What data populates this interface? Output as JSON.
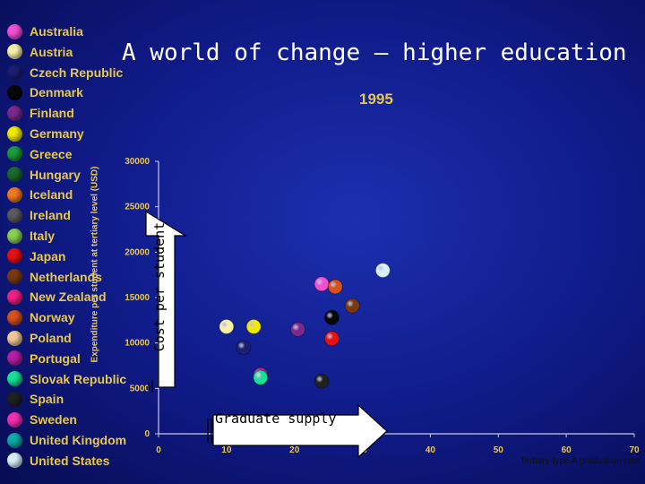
{
  "title": "A world of change – higher education",
  "year": "1995",
  "arrow_up_label": "Cost per student",
  "arrow_right_label": "Graduate supply",
  "legend": [
    {
      "name": "Australia",
      "color": "#f050d0"
    },
    {
      "name": "Austria",
      "color": "#f7f1a8"
    },
    {
      "name": "Czech Republic",
      "color": "#1a1f70"
    },
    {
      "name": "Denmark",
      "color": "#080808"
    },
    {
      "name": "Finland",
      "color": "#7a2a8c"
    },
    {
      "name": "Germany",
      "color": "#f0e800"
    },
    {
      "name": "Greece",
      "color": "#1a9a3a"
    },
    {
      "name": "Hungary",
      "color": "#1c6a2a"
    },
    {
      "name": "Iceland",
      "color": "#f07a20"
    },
    {
      "name": "Ireland",
      "color": "#5a5a5a"
    },
    {
      "name": "Italy",
      "color": "#8ad050"
    },
    {
      "name": "Japan",
      "color": "#e81010"
    },
    {
      "name": "Netherlands",
      "color": "#7a3a10"
    },
    {
      "name": "New Zealand",
      "color": "#f02080"
    },
    {
      "name": "Norway",
      "color": "#d8501a"
    },
    {
      "name": "Poland",
      "color": "#f5c898"
    },
    {
      "name": "Portugal",
      "color": "#b020a0"
    },
    {
      "name": "Slovak Republic",
      "color": "#18e098"
    },
    {
      "name": "Spain",
      "color": "#202020"
    },
    {
      "name": "Sweden",
      "color": "#f030b0"
    },
    {
      "name": "United Kingdom",
      "color": "#10a8a8"
    },
    {
      "name": "United States",
      "color": "#d8f0f8"
    }
  ],
  "chart_data": {
    "type": "scatter",
    "title": "1995",
    "xlabel": "Tertiary-type A graduation rate",
    "ylabel": "Expenditure per student at tertiary level (USD)",
    "xlim": [
      0,
      70
    ],
    "ylim": [
      0,
      30000
    ],
    "x_ticks": [
      "0",
      "10",
      "20",
      "30",
      "40",
      "50",
      "60",
      "70"
    ],
    "y_ticks": [
      "0",
      "5000",
      "10000",
      "15000",
      "20000",
      "25000",
      "30000"
    ],
    "points": [
      {
        "x": 33,
        "y": 18000,
        "color": "#d8f0f8"
      },
      {
        "x": 24,
        "y": 16500,
        "color": "#f050d0"
      },
      {
        "x": 26,
        "y": 16200,
        "color": "#d8501a"
      },
      {
        "x": 28.5,
        "y": 14100,
        "color": "#7a3a10"
      },
      {
        "x": 25.5,
        "y": 12800,
        "color": "#080808"
      },
      {
        "x": 10,
        "y": 11800,
        "color": "#f7f1a8"
      },
      {
        "x": 14,
        "y": 11800,
        "color": "#f0e800"
      },
      {
        "x": 20.5,
        "y": 11500,
        "color": "#7a2a8c"
      },
      {
        "x": 25.5,
        "y": 10500,
        "color": "#e81010"
      },
      {
        "x": 12.5,
        "y": 9500,
        "color": "#1a1f70"
      },
      {
        "x": 15,
        "y": 6500,
        "color": "#b020a0"
      },
      {
        "x": 15,
        "y": 6200,
        "color": "#18e098"
      },
      {
        "x": 24,
        "y": 5800,
        "color": "#202020"
      }
    ]
  }
}
